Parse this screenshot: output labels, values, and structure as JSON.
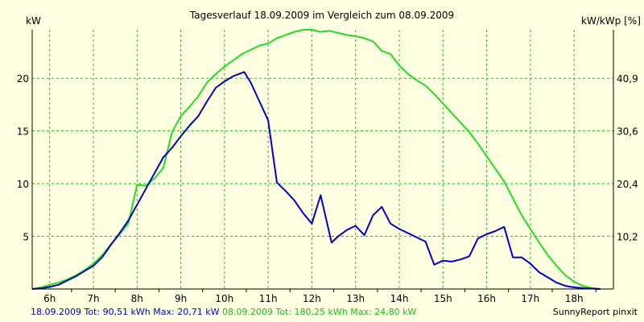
{
  "chart_data": {
    "type": "line",
    "title": "Tagesverlauf 18.09.2009 im Vergleich zum 08.09.2009",
    "ylabel_left": "kW",
    "ylabel_right": "kW/kWp [%]",
    "x_tick_labels": [
      "6h",
      "7h",
      "8h",
      "9h",
      "10h",
      "11h",
      "12h",
      "13h",
      "14h",
      "15h",
      "16h",
      "17h",
      "18h"
    ],
    "x_range": [
      5.6,
      18.9
    ],
    "ylim": [
      0,
      24.6
    ],
    "y_ticks_left": [
      5,
      10,
      15,
      20
    ],
    "y_tick_labels_left": [
      "5",
      "10",
      "15",
      "20"
    ],
    "y_ticks_right_values": [
      5,
      10,
      15,
      20
    ],
    "y_tick_labels_right": [
      "10,2",
      "20,4",
      "30,6",
      "40,9"
    ],
    "grid": true,
    "series": [
      {
        "name": "18.09.2009",
        "color": "#0000cc",
        "points": [
          [
            5.6,
            0.0
          ],
          [
            5.8,
            0.05
          ],
          [
            6.0,
            0.2
          ],
          [
            6.2,
            0.4
          ],
          [
            6.4,
            0.8
          ],
          [
            6.6,
            1.2
          ],
          [
            6.8,
            1.7
          ],
          [
            7.0,
            2.2
          ],
          [
            7.2,
            3.0
          ],
          [
            7.4,
            4.2
          ],
          [
            7.6,
            5.3
          ],
          [
            7.8,
            6.5
          ],
          [
            8.0,
            8.0
          ],
          [
            8.2,
            9.5
          ],
          [
            8.4,
            11.0
          ],
          [
            8.6,
            12.5
          ],
          [
            8.8,
            13.4
          ],
          [
            9.0,
            14.5
          ],
          [
            9.2,
            15.5
          ],
          [
            9.4,
            16.4
          ],
          [
            9.6,
            17.8
          ],
          [
            9.8,
            19.1
          ],
          [
            10.0,
            19.7
          ],
          [
            10.2,
            20.2
          ],
          [
            10.45,
            20.6
          ],
          [
            10.6,
            19.6
          ],
          [
            10.8,
            17.8
          ],
          [
            11.0,
            16.0
          ],
          [
            11.2,
            10.1
          ],
          [
            11.4,
            9.3
          ],
          [
            11.6,
            8.4
          ],
          [
            11.8,
            7.2
          ],
          [
            12.0,
            6.2
          ],
          [
            12.2,
            8.9
          ],
          [
            12.45,
            4.4
          ],
          [
            12.6,
            5.0
          ],
          [
            12.8,
            5.6
          ],
          [
            13.0,
            6.0
          ],
          [
            13.2,
            5.1
          ],
          [
            13.4,
            7.0
          ],
          [
            13.6,
            7.8
          ],
          [
            13.8,
            6.2
          ],
          [
            14.0,
            5.7
          ],
          [
            14.2,
            5.3
          ],
          [
            14.4,
            4.9
          ],
          [
            14.6,
            4.5
          ],
          [
            14.8,
            2.3
          ],
          [
            15.0,
            2.7
          ],
          [
            15.2,
            2.6
          ],
          [
            15.4,
            2.8
          ],
          [
            15.6,
            3.1
          ],
          [
            15.8,
            4.8
          ],
          [
            16.0,
            5.2
          ],
          [
            16.2,
            5.5
          ],
          [
            16.4,
            5.9
          ],
          [
            16.6,
            3.0
          ],
          [
            16.8,
            3.0
          ],
          [
            17.0,
            2.4
          ],
          [
            17.2,
            1.6
          ],
          [
            17.4,
            1.1
          ],
          [
            17.6,
            0.6
          ],
          [
            17.8,
            0.3
          ],
          [
            18.0,
            0.15
          ],
          [
            18.3,
            0.05
          ],
          [
            18.6,
            0.0
          ]
        ]
      },
      {
        "name": "08.09.2009",
        "color": "#22dd22",
        "points": [
          [
            5.6,
            0.0
          ],
          [
            5.8,
            0.15
          ],
          [
            6.0,
            0.4
          ],
          [
            6.2,
            0.6
          ],
          [
            6.4,
            0.9
          ],
          [
            6.6,
            1.3
          ],
          [
            6.8,
            1.8
          ],
          [
            7.0,
            2.4
          ],
          [
            7.2,
            3.2
          ],
          [
            7.4,
            4.2
          ],
          [
            7.6,
            5.2
          ],
          [
            7.8,
            6.2
          ],
          [
            8.0,
            9.9
          ],
          [
            8.2,
            9.8
          ],
          [
            8.4,
            10.5
          ],
          [
            8.6,
            11.5
          ],
          [
            8.8,
            14.9
          ],
          [
            9.0,
            16.4
          ],
          [
            9.2,
            17.3
          ],
          [
            9.4,
            18.3
          ],
          [
            9.6,
            19.6
          ],
          [
            9.8,
            20.4
          ],
          [
            10.0,
            21.1
          ],
          [
            10.2,
            21.7
          ],
          [
            10.4,
            22.3
          ],
          [
            10.6,
            22.7
          ],
          [
            10.8,
            23.1
          ],
          [
            11.0,
            23.3
          ],
          [
            11.2,
            23.8
          ],
          [
            11.4,
            24.1
          ],
          [
            11.6,
            24.4
          ],
          [
            11.8,
            24.6
          ],
          [
            12.0,
            24.6
          ],
          [
            12.2,
            24.4
          ],
          [
            12.4,
            24.5
          ],
          [
            12.6,
            24.3
          ],
          [
            12.8,
            24.1
          ],
          [
            13.0,
            24.0
          ],
          [
            13.2,
            23.8
          ],
          [
            13.4,
            23.5
          ],
          [
            13.6,
            22.6
          ],
          [
            13.8,
            22.3
          ],
          [
            14.0,
            21.2
          ],
          [
            14.2,
            20.4
          ],
          [
            14.4,
            19.8
          ],
          [
            14.6,
            19.3
          ],
          [
            14.8,
            18.5
          ],
          [
            15.0,
            17.6
          ],
          [
            15.2,
            16.7
          ],
          [
            15.4,
            15.8
          ],
          [
            15.6,
            14.9
          ],
          [
            15.8,
            13.8
          ],
          [
            16.0,
            12.6
          ],
          [
            16.2,
            11.4
          ],
          [
            16.4,
            10.2
          ],
          [
            16.6,
            8.6
          ],
          [
            16.8,
            7.0
          ],
          [
            17.0,
            5.7
          ],
          [
            17.2,
            4.4
          ],
          [
            17.4,
            3.2
          ],
          [
            17.6,
            2.2
          ],
          [
            17.8,
            1.3
          ],
          [
            18.0,
            0.7
          ],
          [
            18.2,
            0.3
          ],
          [
            18.4,
            0.1
          ],
          [
            18.6,
            0.0
          ]
        ]
      }
    ]
  },
  "footer": {
    "left_blue": "18.09.2009 Tot: 90,51 kWh Max: 20,71 kW",
    "left_green": " 08.09.2009 Tot: 180,25 kWh Max: 24,80 kW",
    "right": "SunnyReport pinxit"
  },
  "colors": {
    "background": "#ffffe1",
    "grid": "#22bb22",
    "axis": "#000000"
  }
}
